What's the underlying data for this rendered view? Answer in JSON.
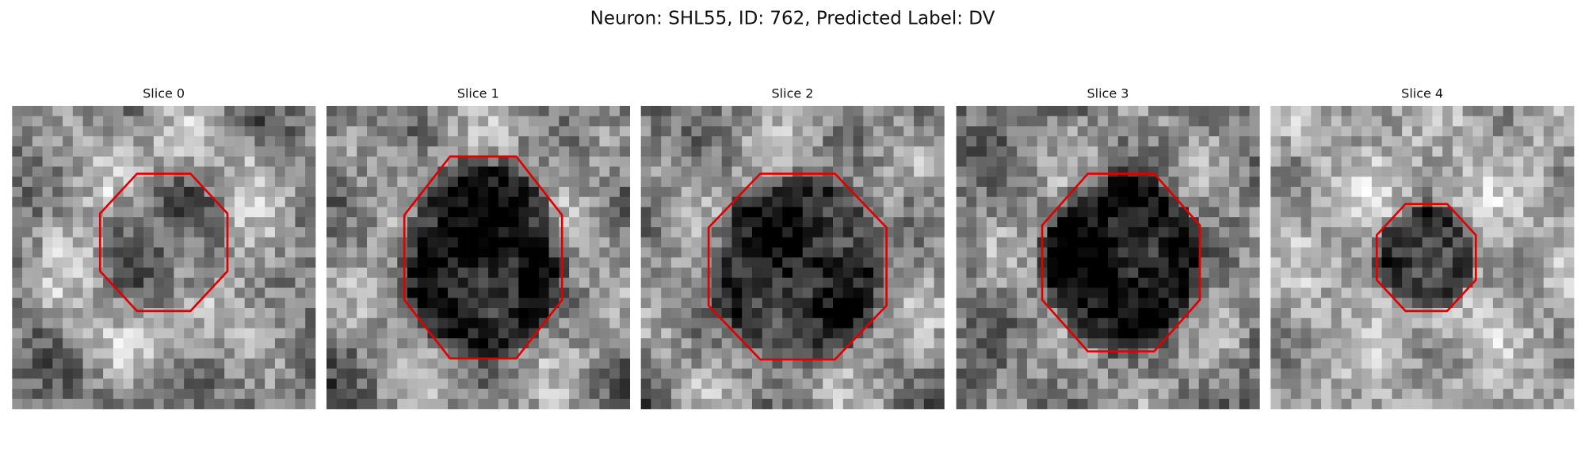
{
  "figure": {
    "title": "Neuron: SHL55, ID: 762, Predicted Label: DV",
    "panels": [
      {
        "title": "Slice 0"
      },
      {
        "title": "Slice 1"
      },
      {
        "title": "Slice 2"
      },
      {
        "title": "Slice 3"
      },
      {
        "title": "Slice 4"
      }
    ]
  }
}
